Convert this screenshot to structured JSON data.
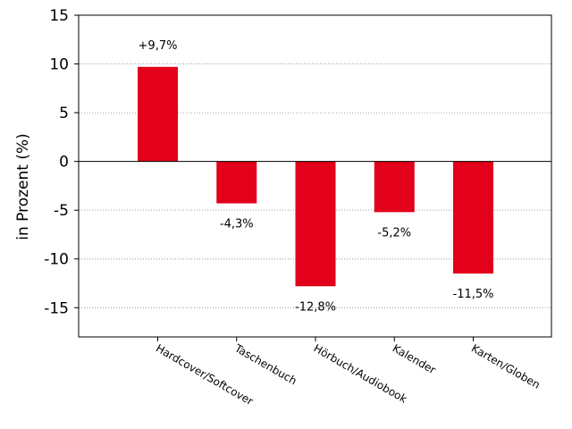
{
  "chart_data": {
    "type": "bar",
    "title": "",
    "xlabel": "",
    "ylabel": "in Prozent (%)",
    "ylim": [
      -18,
      15
    ],
    "yticks": [
      15,
      10,
      5,
      0,
      -5,
      -10,
      -15
    ],
    "ytick_labels": [
      "15",
      "10",
      "5",
      "0",
      "-5",
      "-10",
      "-15"
    ],
    "grid": "horizontal-dotted",
    "categories": [
      "Hardcover/Softcover",
      "Taschenbuch",
      "Hörbuch/Audiobook",
      "Kalender",
      "Karten/Globen"
    ],
    "values": [
      9.7,
      -4.3,
      -12.8,
      -5.2,
      -11.5
    ],
    "data_labels": [
      "+9,7%",
      "-4,3%",
      "-12,8%",
      "-5,2%",
      "-11,5%"
    ],
    "bar_color": "#e2001a"
  }
}
